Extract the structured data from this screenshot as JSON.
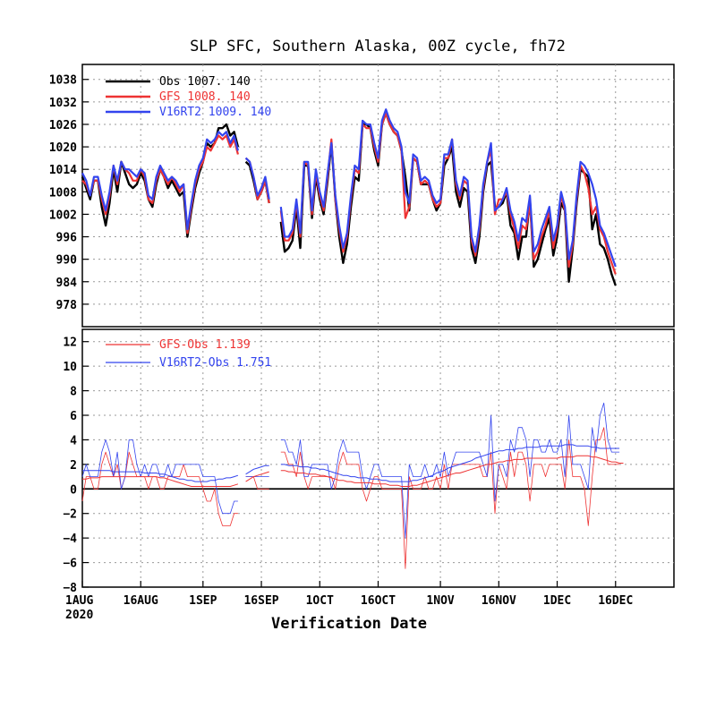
{
  "chart_data": [
    {
      "type": "line",
      "title": "SLP SFC, Southern Alaska, 00Z cycle, fh72",
      "xlabel": "Verification Date",
      "x_ticks": [
        "1AUG",
        "16AUG",
        "1SEP",
        "16SEP",
        "1OCT",
        "16OCT",
        "1NOV",
        "16NOV",
        "1DEC",
        "16DEC"
      ],
      "x_tick_days": [
        0,
        15,
        31,
        46,
        61,
        76,
        92,
        107,
        122,
        137
      ],
      "x_year_label": "2020",
      "x_range_days": [
        0,
        152
      ],
      "ylim": [
        972,
        1042
      ],
      "y_ticks": [
        978,
        984,
        990,
        996,
        1002,
        1008,
        1014,
        1020,
        1026,
        1032,
        1038
      ],
      "grid": true,
      "legend_position": "top-left",
      "series": [
        {
          "name": "Obs",
          "legend_text": "Obs  1007.  140",
          "color": "#000000",
          "values": [
            1012,
            1009,
            1006,
            1011,
            1011,
            1004,
            999,
            1005,
            1014,
            1008,
            1016,
            1013,
            1010,
            1009,
            1010,
            1013,
            1011,
            1006,
            1004,
            1010,
            1014,
            1012,
            1009,
            1011,
            1009,
            1007,
            1008,
            996,
            1003,
            1009,
            1013,
            1016,
            1021,
            1020,
            1021,
            1025,
            1025,
            1026,
            1023,
            1024,
            1020,
            null,
            1016,
            1015,
            1011,
            1006,
            1008,
            1011,
            1005,
            null,
            null,
            1000,
            992,
            993,
            995,
            1004,
            993,
            1015,
            1015,
            1001,
            1012,
            1006,
            1002,
            1011,
            1021,
            1006,
            996,
            989,
            994,
            1004,
            1012,
            1011,
            1026,
            1026,
            1025,
            1019,
            1015,
            1026,
            1029,
            1026,
            1024,
            1023,
            1019,
            1012,
            1003,
            1017,
            1016,
            1010,
            1010,
            1010,
            1006,
            1003,
            1005,
            1015,
            1017,
            1020,
            1008,
            1004,
            1009,
            1008,
            993,
            989,
            996,
            1008,
            1015,
            1016,
            1004,
            1004,
            1005,
            1008,
            999,
            997,
            990,
            996,
            996,
            1006,
            988,
            990,
            994,
            998,
            1001,
            991,
            996,
            1005,
            1003,
            984,
            993,
            1005,
            1014,
            1013,
            1012,
            998,
            1002,
            994,
            993,
            990,
            986,
            983
          ]
        },
        {
          "name": "GFS",
          "legend_text": "GFS  1008.  140",
          "color": "#ee3333",
          "values": [
            1011,
            1010,
            1007,
            1011,
            1011,
            1006,
            1002,
            1007,
            1015,
            1010,
            1016,
            1014,
            1013,
            1011,
            1011,
            1014,
            1012,
            1006,
            1005,
            1011,
            1014,
            1012,
            1010,
            1012,
            1010,
            1008,
            1010,
            997,
            1004,
            1010,
            1014,
            1016,
            1020,
            1019,
            1021,
            1023,
            1022,
            1023,
            1020,
            1022,
            1018,
            null,
            1017,
            1016,
            1012,
            1006,
            1008,
            1011,
            1005,
            null,
            null,
            1003,
            995,
            995,
            997,
            1005,
            996,
            1016,
            1015,
            1002,
            1013,
            1007,
            1003,
            1012,
            1022,
            1006,
            998,
            992,
            996,
            1006,
            1014,
            1013,
            1026,
            1025,
            1025,
            1020,
            1016,
            1026,
            1029,
            1026,
            1024,
            1023,
            1019,
            1001,
            1004,
            1017,
            1016,
            1010,
            1011,
            1010,
            1006,
            1004,
            1005,
            1017,
            1017,
            1022,
            1010,
            1006,
            1011,
            1010,
            995,
            991,
            998,
            1009,
            1016,
            1019,
            1002,
            1006,
            1006,
            1008,
            1002,
            998,
            993,
            999,
            998,
            1005,
            990,
            992,
            996,
            999,
            1003,
            993,
            998,
            1007,
            1003,
            988,
            994,
            1006,
            1015,
            1013,
            1009,
            1002,
            1004,
            998,
            996,
            992,
            989,
            986
          ]
        },
        {
          "name": "V16RT2",
          "legend_text": "V16RT2  1009.  140",
          "color": "#3344ee",
          "values": [
            1013,
            1011,
            1007,
            1012,
            1012,
            1007,
            1003,
            1008,
            1015,
            1011,
            1016,
            1014,
            1014,
            1013,
            1012,
            1014,
            1013,
            1007,
            1006,
            1012,
            1015,
            1013,
            1011,
            1012,
            1011,
            1009,
            1010,
            998,
            1005,
            1011,
            1015,
            1017,
            1022,
            1021,
            1022,
            1024,
            1023,
            1024,
            1021,
            1023,
            1019,
            null,
            1017,
            1016,
            1012,
            1007,
            1009,
            1012,
            1006,
            null,
            null,
            1004,
            996,
            996,
            998,
            1006,
            997,
            1016,
            1016,
            1003,
            1014,
            1008,
            1004,
            1013,
            1021,
            1007,
            999,
            993,
            997,
            1007,
            1015,
            1014,
            1027,
            1026,
            1026,
            1021,
            1017,
            1027,
            1030,
            1027,
            1025,
            1024,
            1020,
            1008,
            1005,
            1018,
            1017,
            1011,
            1012,
            1011,
            1007,
            1005,
            1006,
            1018,
            1018,
            1022,
            1011,
            1007,
            1012,
            1011,
            996,
            992,
            999,
            1010,
            1016,
            1021,
            1003,
            1004,
            1006,
            1009,
            1003,
            1000,
            995,
            1001,
            1000,
            1007,
            992,
            994,
            998,
            1001,
            1004,
            995,
            999,
            1008,
            1004,
            990,
            995,
            1007,
            1016,
            1015,
            1013,
            1010,
            1006,
            999,
            997,
            994,
            991,
            988
          ]
        }
      ]
    },
    {
      "type": "line",
      "xlabel": "Verification Date",
      "ylim": [
        -8,
        13
      ],
      "y_ticks": [
        -8,
        -6,
        -4,
        -2,
        0,
        2,
        4,
        6,
        8,
        10,
        12
      ],
      "grid": true,
      "zero_line": true,
      "legend_position": "top-left",
      "series": [
        {
          "name": "GFS-Obs",
          "legend_text": "GFS-Obs 1.139",
          "color": "#ee3333",
          "values": [
            -1,
            1,
            1,
            0,
            0,
            2,
            3,
            2,
            1,
            2,
            0,
            1,
            3,
            2,
            1,
            1,
            1,
            0,
            1,
            1,
            0,
            0,
            1,
            1,
            1,
            1,
            2,
            1,
            1,
            1,
            1,
            0,
            -1,
            -1,
            0,
            -2,
            -3,
            -3,
            -3,
            -2,
            -2,
            null,
            1,
            1,
            1,
            0,
            0,
            0,
            0,
            null,
            null,
            3,
            3,
            2,
            2,
            1,
            3,
            1,
            0,
            1,
            1,
            1,
            1,
            1,
            1,
            0,
            2,
            3,
            2,
            2,
            2,
            2,
            0,
            -1,
            0,
            1,
            1,
            0,
            0,
            0,
            0,
            0,
            0,
            -6.5,
            1,
            0,
            0,
            0,
            1,
            0,
            0,
            1,
            0,
            2,
            0,
            2,
            2,
            2,
            2,
            2,
            2,
            2,
            2,
            1,
            1,
            3,
            -2,
            2,
            1,
            0,
            3,
            1,
            3,
            3,
            2,
            -1,
            2,
            2,
            2,
            1,
            2,
            2,
            2,
            2,
            0,
            4,
            1,
            1,
            1,
            0,
            -3,
            1,
            4,
            4,
            5,
            2,
            2,
            2,
            2
          ]
        },
        {
          "name": "V16RT2-Obs",
          "legend_text": "V16RT2-Obs 1.751",
          "color": "#3344ee",
          "values": [
            1,
            2,
            1,
            1,
            1,
            3,
            4,
            3,
            1,
            3,
            0,
            1,
            4,
            4,
            2,
            1,
            2,
            1,
            2,
            2,
            1,
            1,
            2,
            1,
            2,
            2,
            2,
            2,
            2,
            2,
            2,
            1,
            1,
            1,
            1,
            -1,
            -2,
            -2,
            -2,
            -1,
            -1,
            null,
            1,
            1,
            1,
            1,
            1,
            1,
            1,
            null,
            null,
            4,
            4,
            3,
            3,
            2,
            4,
            1,
            1,
            2,
            2,
            2,
            2,
            2,
            0,
            1,
            3,
            4,
            3,
            3,
            3,
            3,
            1,
            0,
            1,
            2,
            2,
            1,
            1,
            1,
            1,
            1,
            1,
            -4,
            2,
            1,
            1,
            1,
            2,
            1,
            1,
            2,
            1,
            3,
            1,
            2,
            3,
            3,
            3,
            3,
            3,
            3,
            3,
            2,
            1,
            6,
            -1,
            2,
            2,
            1,
            4,
            3,
            5,
            5,
            4,
            1,
            4,
            4,
            3,
            3,
            4,
            3,
            3,
            4,
            1,
            6,
            2,
            2,
            2,
            1,
            0,
            5,
            3,
            6,
            7,
            4,
            3,
            3,
            3
          ]
        },
        {
          "name": "GFS-Obs mean",
          "color": "#ee3333",
          "values": [
            0.8,
            0.8,
            0.9,
            0.9,
            0.9,
            1.0,
            1.0,
            1.0,
            1.0,
            1.0,
            1.0,
            1.0,
            1.0,
            1.0,
            1.0,
            1.0,
            1.0,
            1.0,
            1.0,
            1.0,
            0.9,
            0.9,
            0.8,
            0.7,
            0.6,
            0.5,
            0.4,
            0.3,
            0.2,
            0.2,
            0.2,
            0.2,
            0.2,
            0.2,
            0.2,
            0.2,
            0.2,
            0.2,
            0.2,
            0.3,
            0.4,
            null,
            0.6,
            0.8,
            1.0,
            1.1,
            1.2,
            1.3,
            1.4,
            null,
            null,
            1.5,
            1.5,
            1.4,
            1.4,
            1.3,
            1.3,
            1.3,
            1.2,
            1.2,
            1.2,
            1.1,
            1.1,
            1.0,
            0.9,
            0.8,
            0.7,
            0.7,
            0.6,
            0.6,
            0.5,
            0.5,
            0.5,
            0.5,
            0.5,
            0.4,
            0.4,
            0.4,
            0.4,
            0.3,
            0.3,
            0.3,
            0.2,
            0.2,
            0.2,
            0.3,
            0.3,
            0.4,
            0.5,
            0.6,
            0.7,
            0.8,
            0.9,
            1.0,
            1.1,
            1.2,
            1.3,
            1.3,
            1.4,
            1.5,
            1.6,
            1.7,
            1.8,
            1.9,
            2.0,
            2.0,
            2.1,
            2.2,
            2.2,
            2.3,
            2.3,
            2.4,
            2.4,
            2.4,
            2.5,
            2.5,
            2.5,
            2.5,
            2.5,
            2.5,
            2.5,
            2.5,
            2.5,
            2.6,
            2.6,
            2.6,
            2.6,
            2.7,
            2.7,
            2.7,
            2.7,
            2.6,
            2.6,
            2.5,
            2.4,
            2.3,
            2.2,
            2.2,
            2.1,
            2.1
          ]
        },
        {
          "name": "V16RT2-Obs mean",
          "color": "#3344ee",
          "values": [
            1.5,
            1.5,
            1.5,
            1.5,
            1.5,
            1.5,
            1.5,
            1.5,
            1.4,
            1.4,
            1.4,
            1.4,
            1.4,
            1.4,
            1.4,
            1.4,
            1.3,
            1.3,
            1.3,
            1.3,
            1.2,
            1.2,
            1.1,
            1.0,
            0.9,
            0.8,
            0.8,
            0.7,
            0.7,
            0.6,
            0.6,
            0.6,
            0.6,
            0.7,
            0.7,
            0.8,
            0.8,
            0.9,
            0.9,
            1.0,
            1.1,
            null,
            1.2,
            1.4,
            1.6,
            1.7,
            1.8,
            1.9,
            1.9,
            null,
            null,
            2.0,
            2.0,
            1.9,
            1.9,
            1.9,
            1.8,
            1.8,
            1.8,
            1.7,
            1.7,
            1.6,
            1.6,
            1.5,
            1.4,
            1.3,
            1.2,
            1.1,
            1.1,
            1.0,
            1.0,
            0.9,
            0.9,
            0.9,
            0.8,
            0.8,
            0.8,
            0.7,
            0.7,
            0.6,
            0.6,
            0.6,
            0.6,
            0.6,
            0.6,
            0.7,
            0.7,
            0.8,
            0.9,
            1.0,
            1.1,
            1.3,
            1.4,
            1.5,
            1.7,
            1.8,
            1.9,
            2.0,
            2.1,
            2.2,
            2.3,
            2.5,
            2.6,
            2.7,
            2.8,
            2.9,
            3.0,
            3.1,
            3.1,
            3.2,
            3.2,
            3.2,
            3.3,
            3.3,
            3.4,
            3.4,
            3.4,
            3.4,
            3.5,
            3.5,
            3.5,
            3.5,
            3.5,
            3.5,
            3.6,
            3.6,
            3.6,
            3.5,
            3.5,
            3.5,
            3.5,
            3.4,
            3.4,
            3.3,
            3.3,
            3.3,
            3.3,
            3.3,
            3.3
          ]
        }
      ]
    }
  ]
}
